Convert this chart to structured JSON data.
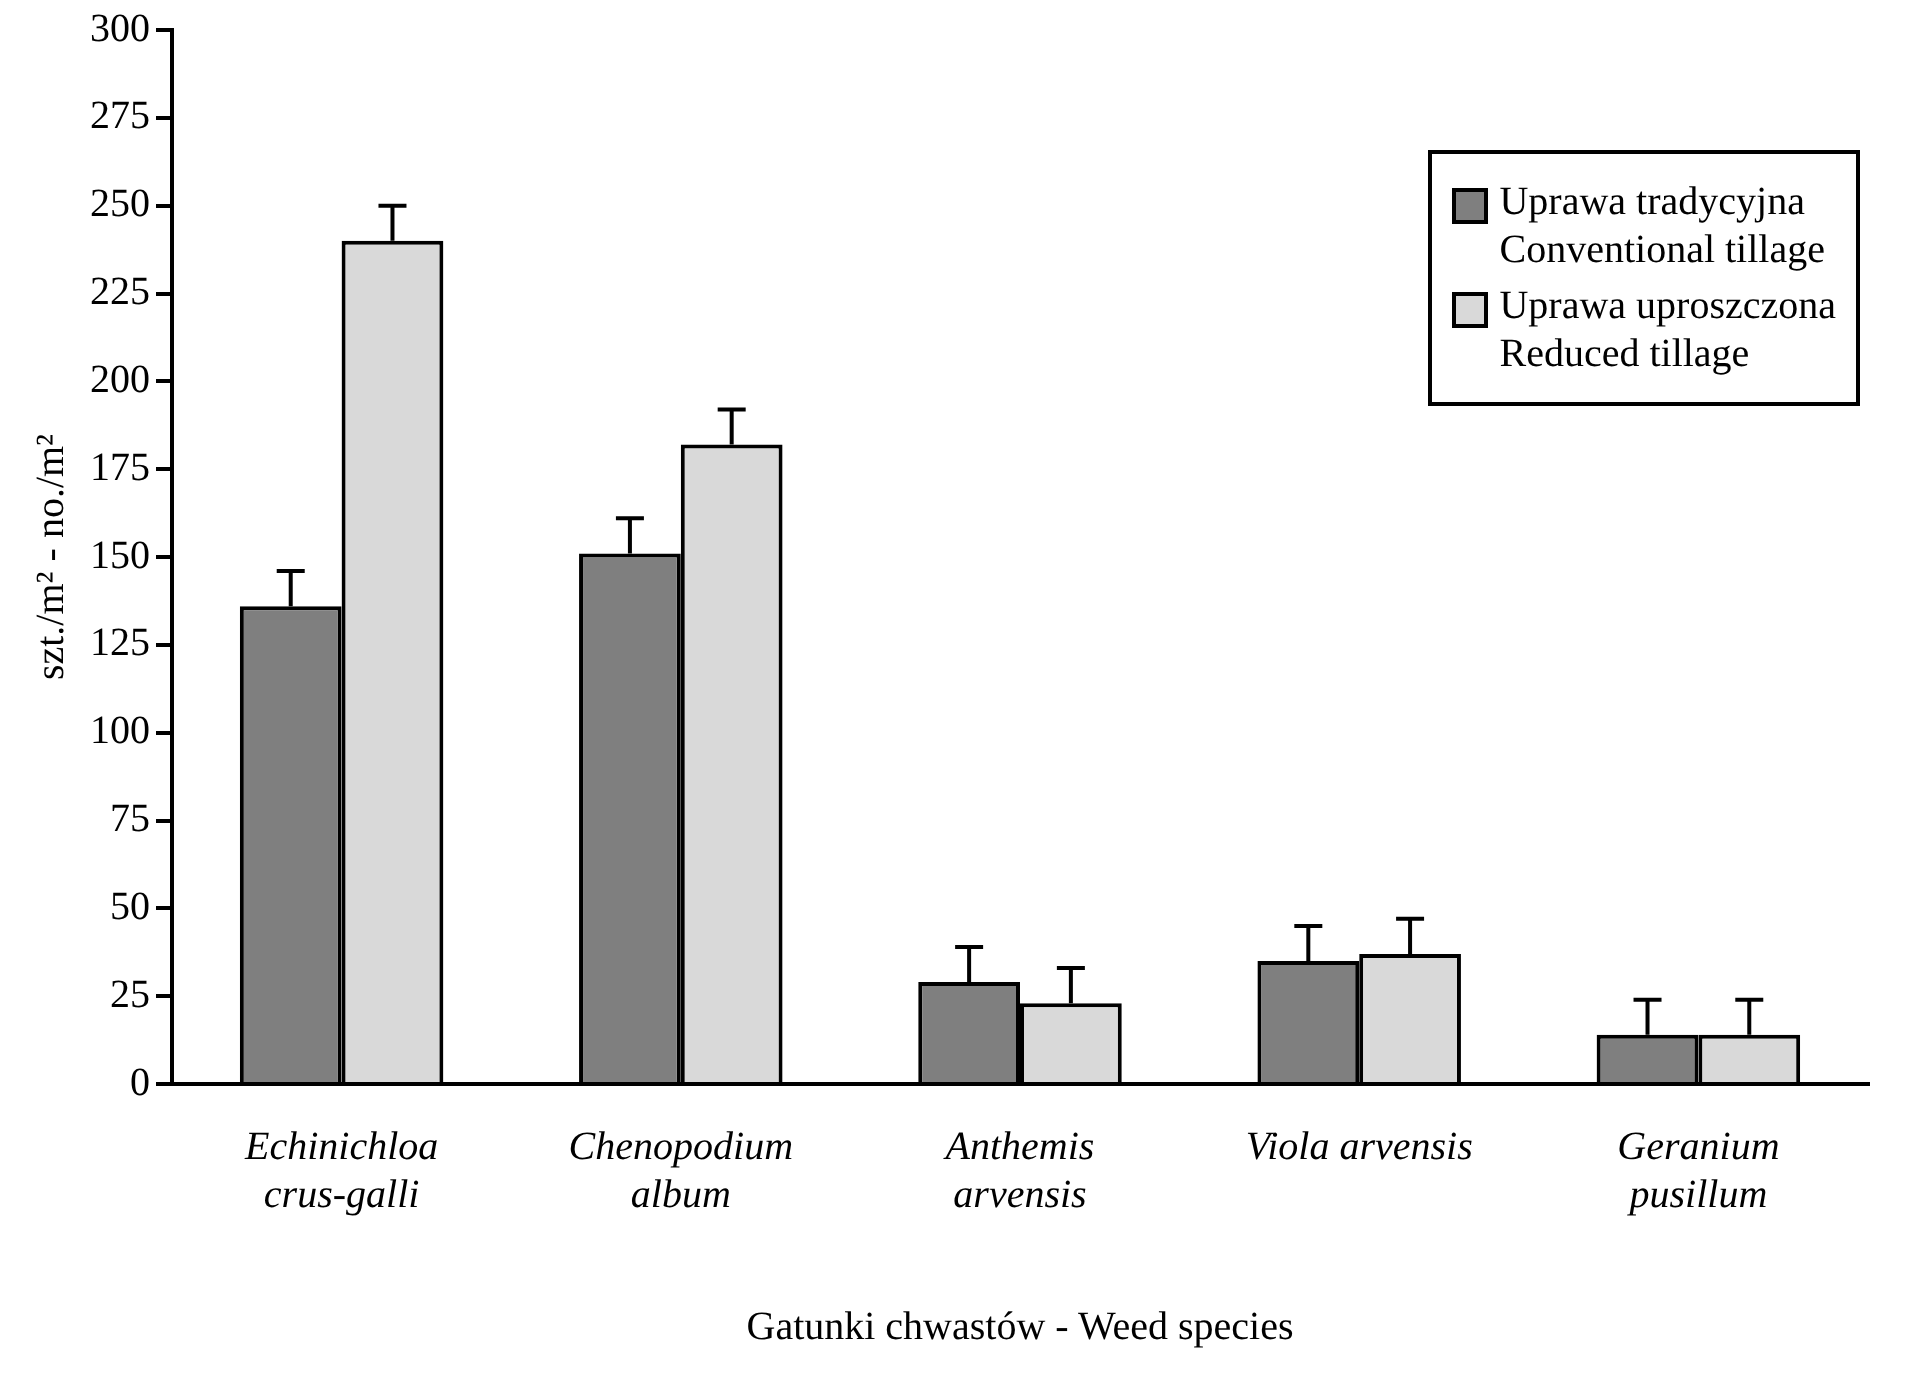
{
  "chart_data": {
    "type": "bar",
    "xlabel": "Gatunki chwastów - Weed species",
    "ylabel": "szt./m² - no./m²",
    "categories": [
      "Echinichloa crus-galli",
      "Chenopodium album",
      "Anthemis arvensis",
      "Viola arvensis",
      "Geranium pusillum"
    ],
    "series": [
      {
        "name": "Uprawa tradycyjna\nConventional tillage",
        "color": "#7f7f7f",
        "values": [
          136,
          151,
          29,
          35,
          14
        ],
        "errors": [
          [
            136,
            146
          ],
          [
            151,
            161
          ],
          [
            29,
            39
          ],
          [
            35,
            45
          ],
          [
            14,
            24
          ]
        ]
      },
      {
        "name": "Uprawa uproszczona\nReduced tillage",
        "color": "#d9d9d9",
        "values": [
          240,
          182,
          23,
          37,
          14
        ],
        "errors": [
          [
            240,
            250
          ],
          [
            182,
            192
          ],
          [
            23,
            33
          ],
          [
            37,
            47
          ],
          [
            14,
            24
          ]
        ]
      }
    ],
    "ylim": [
      0,
      300
    ],
    "yticks": [
      0,
      25,
      50,
      75,
      100,
      125,
      150,
      175,
      200,
      225,
      250,
      275,
      300
    ],
    "grid": false,
    "legend": "top right"
  }
}
